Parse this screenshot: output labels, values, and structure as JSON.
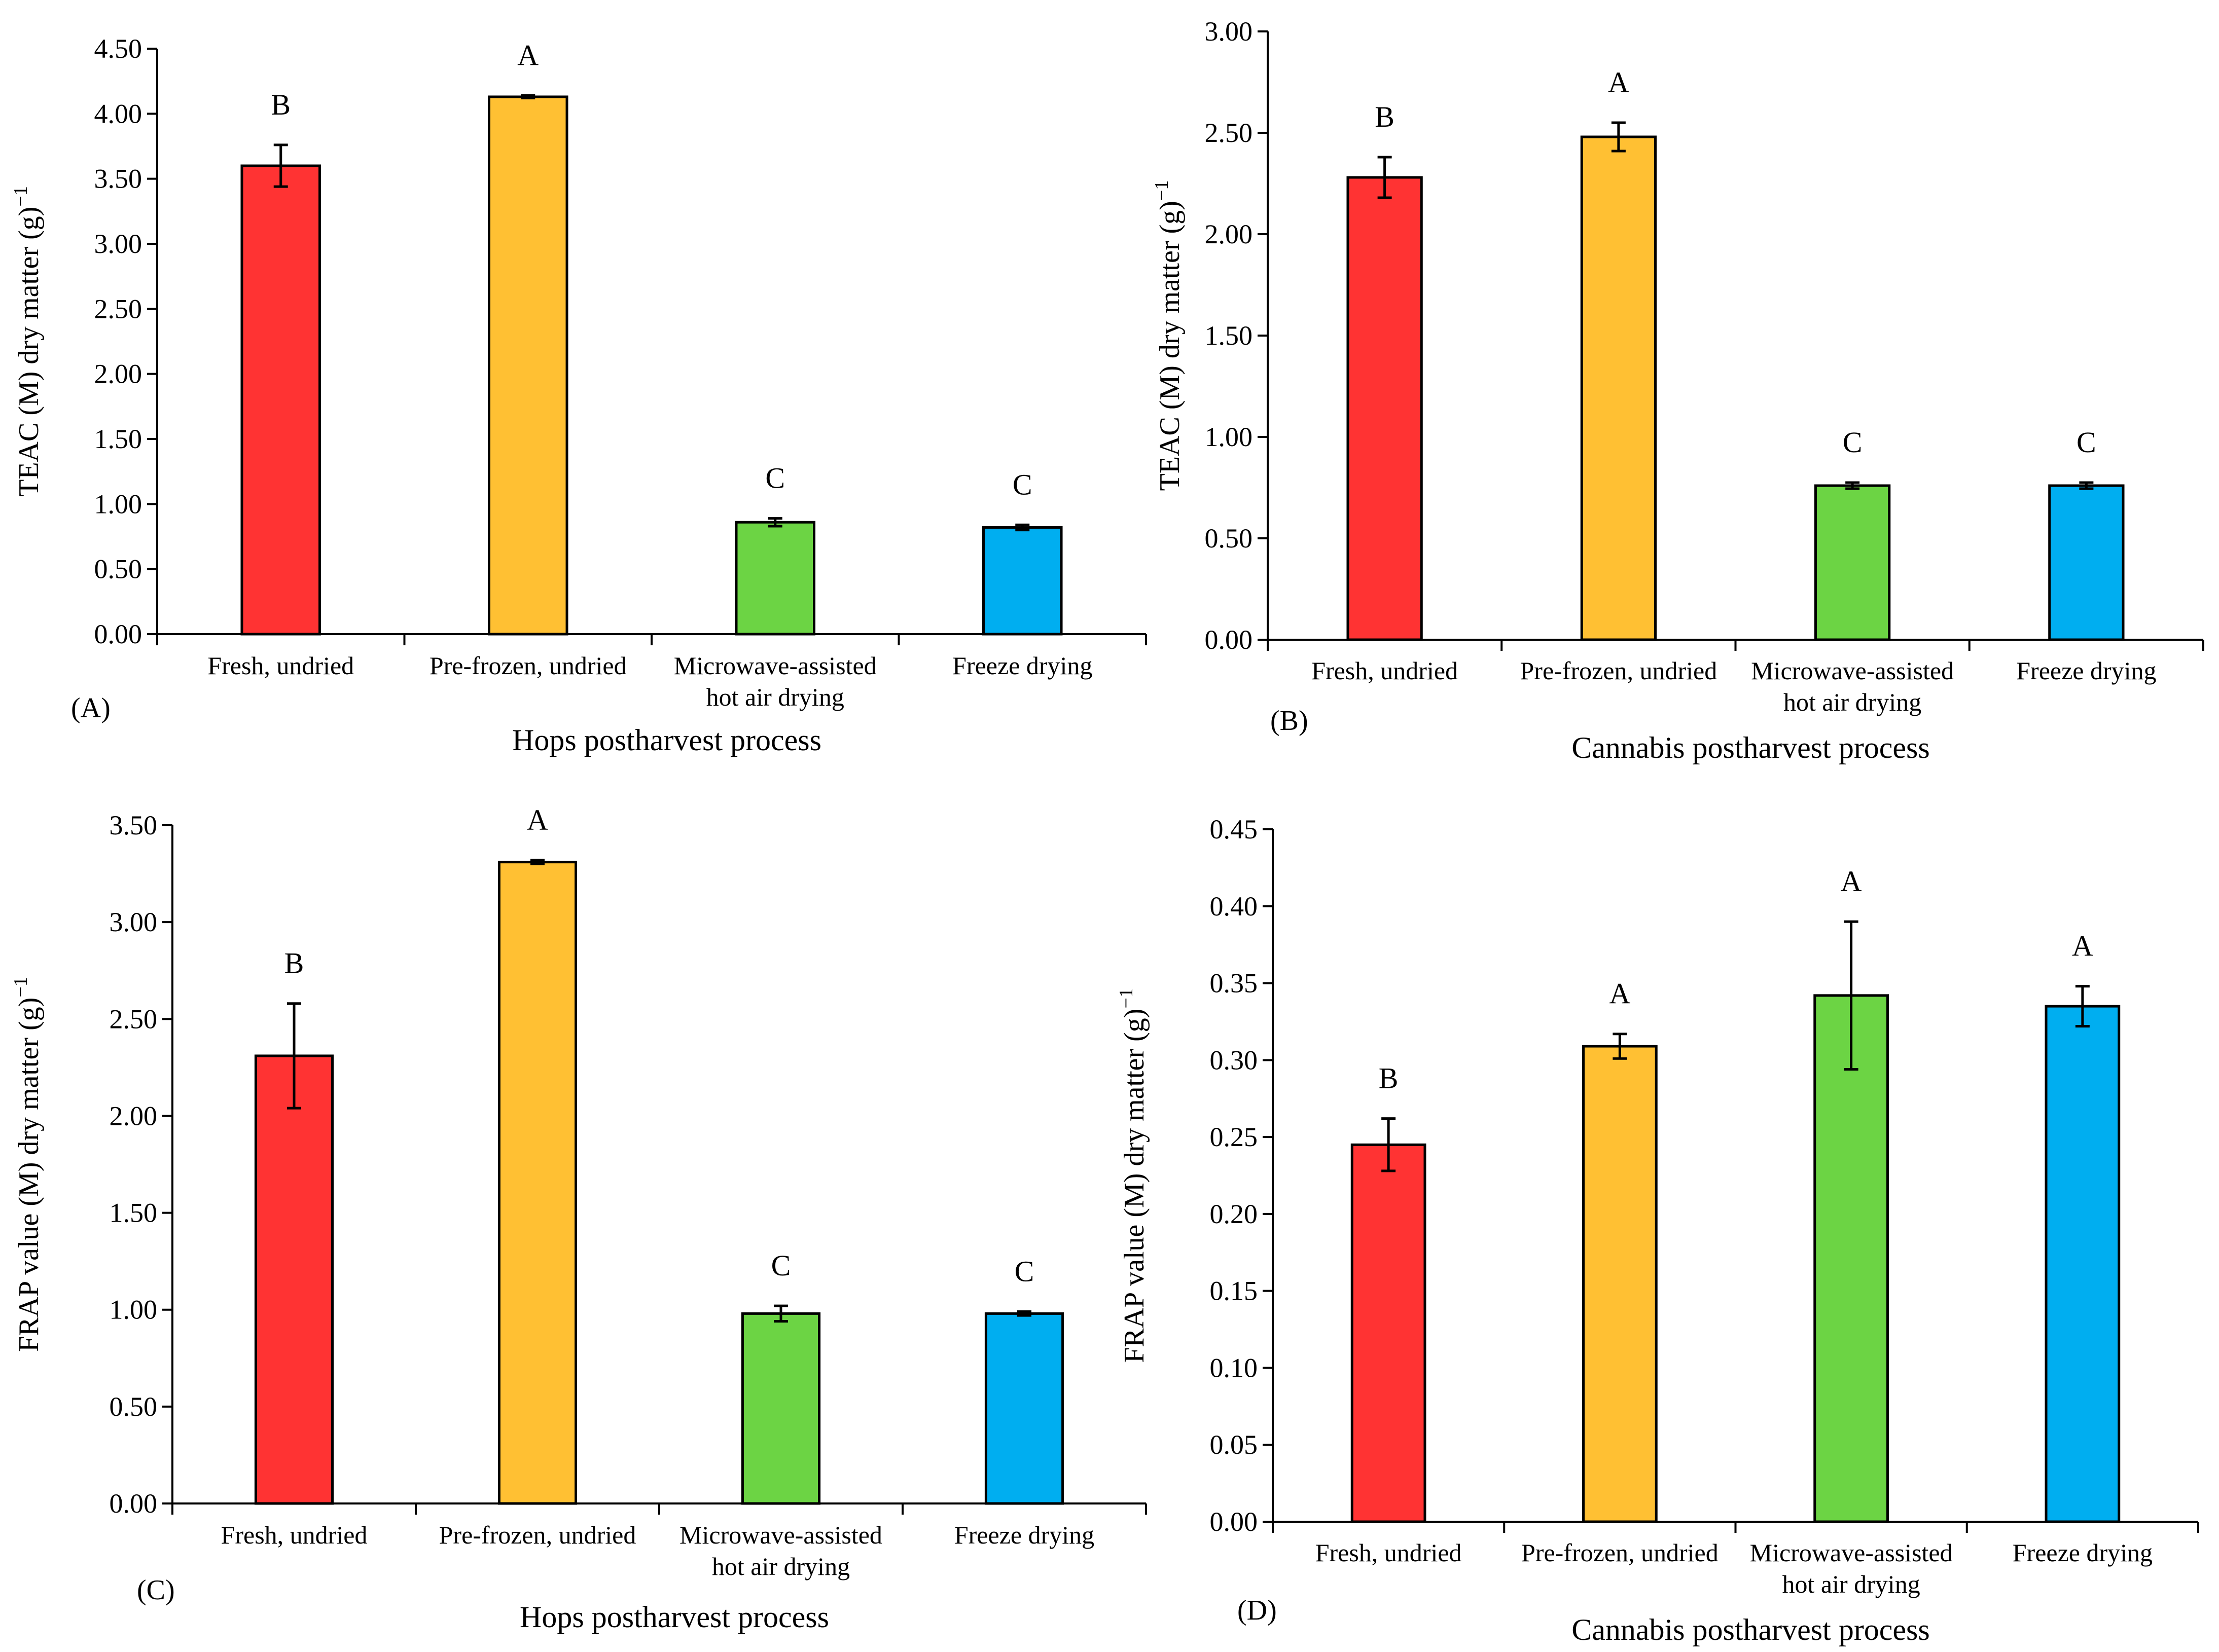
{
  "chart_data": [
    {
      "type": "bar",
      "panel_label": "(A)",
      "xlabel": "Hops postharvest process",
      "ylabel": "TEAC (M) dry matter (g)",
      "ylabel_sup": "−1",
      "categories": [
        [
          "Fresh, undried"
        ],
        [
          "Pre-frozen, undried"
        ],
        [
          "Microwave-assisted",
          "hot air drying"
        ],
        [
          "Freeze drying"
        ]
      ],
      "values": [
        3.6,
        4.13,
        0.86,
        0.82
      ],
      "errors": [
        0.16,
        0.01,
        0.03,
        0.02
      ],
      "significance": [
        "B",
        "A",
        "C",
        "C"
      ],
      "colors": [
        "#ff3333",
        "#ffc033",
        "#6cd444",
        "#00aef0"
      ],
      "ylim": [
        0,
        4.5
      ],
      "yticks": [
        "0.00",
        "0.50",
        "1.00",
        "1.50",
        "2.00",
        "2.50",
        "3.00",
        "3.50",
        "4.00",
        "4.50"
      ]
    },
    {
      "type": "bar",
      "panel_label": "(B)",
      "xlabel": "Cannabis postharvest process",
      "ylabel": "TEAC (M) dry matter (g)",
      "ylabel_sup": "−1",
      "categories": [
        [
          "Fresh, undried"
        ],
        [
          "Pre-frozen, undried"
        ],
        [
          "Microwave-assisted",
          "hot air drying"
        ],
        [
          "Freeze drying"
        ]
      ],
      "values": [
        2.28,
        2.48,
        0.76,
        0.76
      ],
      "errors": [
        0.1,
        0.07,
        0.015,
        0.015
      ],
      "significance": [
        "B",
        "A",
        "C",
        "C"
      ],
      "colors": [
        "#ff3333",
        "#ffc033",
        "#6cd444",
        "#00aef0"
      ],
      "ylim": [
        0,
        3.0
      ],
      "yticks": [
        "0.00",
        "0.50",
        "1.00",
        "1.50",
        "2.00",
        "2.50",
        "3.00"
      ]
    },
    {
      "type": "bar",
      "panel_label": "(C)",
      "xlabel": "Hops postharvest process",
      "ylabel": "FRAP value (M) dry matter (g)",
      "ylabel_sup": "−1",
      "categories": [
        [
          "Fresh, undried"
        ],
        [
          "Pre-frozen, undried"
        ],
        [
          "Microwave-assisted",
          "hot air drying"
        ],
        [
          "Freeze drying"
        ]
      ],
      "values": [
        2.31,
        3.31,
        0.98,
        0.98
      ],
      "errors": [
        0.27,
        0.01,
        0.04,
        0.01
      ],
      "significance": [
        "B",
        "A",
        "C",
        "C"
      ],
      "colors": [
        "#ff3333",
        "#ffc033",
        "#6cd444",
        "#00aef0"
      ],
      "ylim": [
        0,
        3.5
      ],
      "yticks": [
        "0.00",
        "0.50",
        "1.00",
        "1.50",
        "2.00",
        "2.50",
        "3.00",
        "3.50"
      ]
    },
    {
      "type": "bar",
      "panel_label": "(D)",
      "xlabel": "Cannabis postharvest process",
      "ylabel": "FRAP value (M) dry matter (g)",
      "ylabel_sup": "−1",
      "categories": [
        [
          "Fresh, undried"
        ],
        [
          "Pre-frozen, undried"
        ],
        [
          "Microwave-assisted",
          "hot air drying"
        ],
        [
          "Freeze drying"
        ]
      ],
      "values": [
        0.245,
        0.309,
        0.342,
        0.335
      ],
      "errors": [
        0.017,
        0.008,
        0.048,
        0.013
      ],
      "significance": [
        "B",
        "A",
        "A",
        "A"
      ],
      "colors": [
        "#ff3333",
        "#ffc033",
        "#6cd444",
        "#00aef0"
      ],
      "ylim": [
        0,
        0.45
      ],
      "yticks": [
        "0.00",
        "0.05",
        "0.10",
        "0.15",
        "0.20",
        "0.25",
        "0.30",
        "0.35",
        "0.40",
        "0.45"
      ]
    }
  ]
}
